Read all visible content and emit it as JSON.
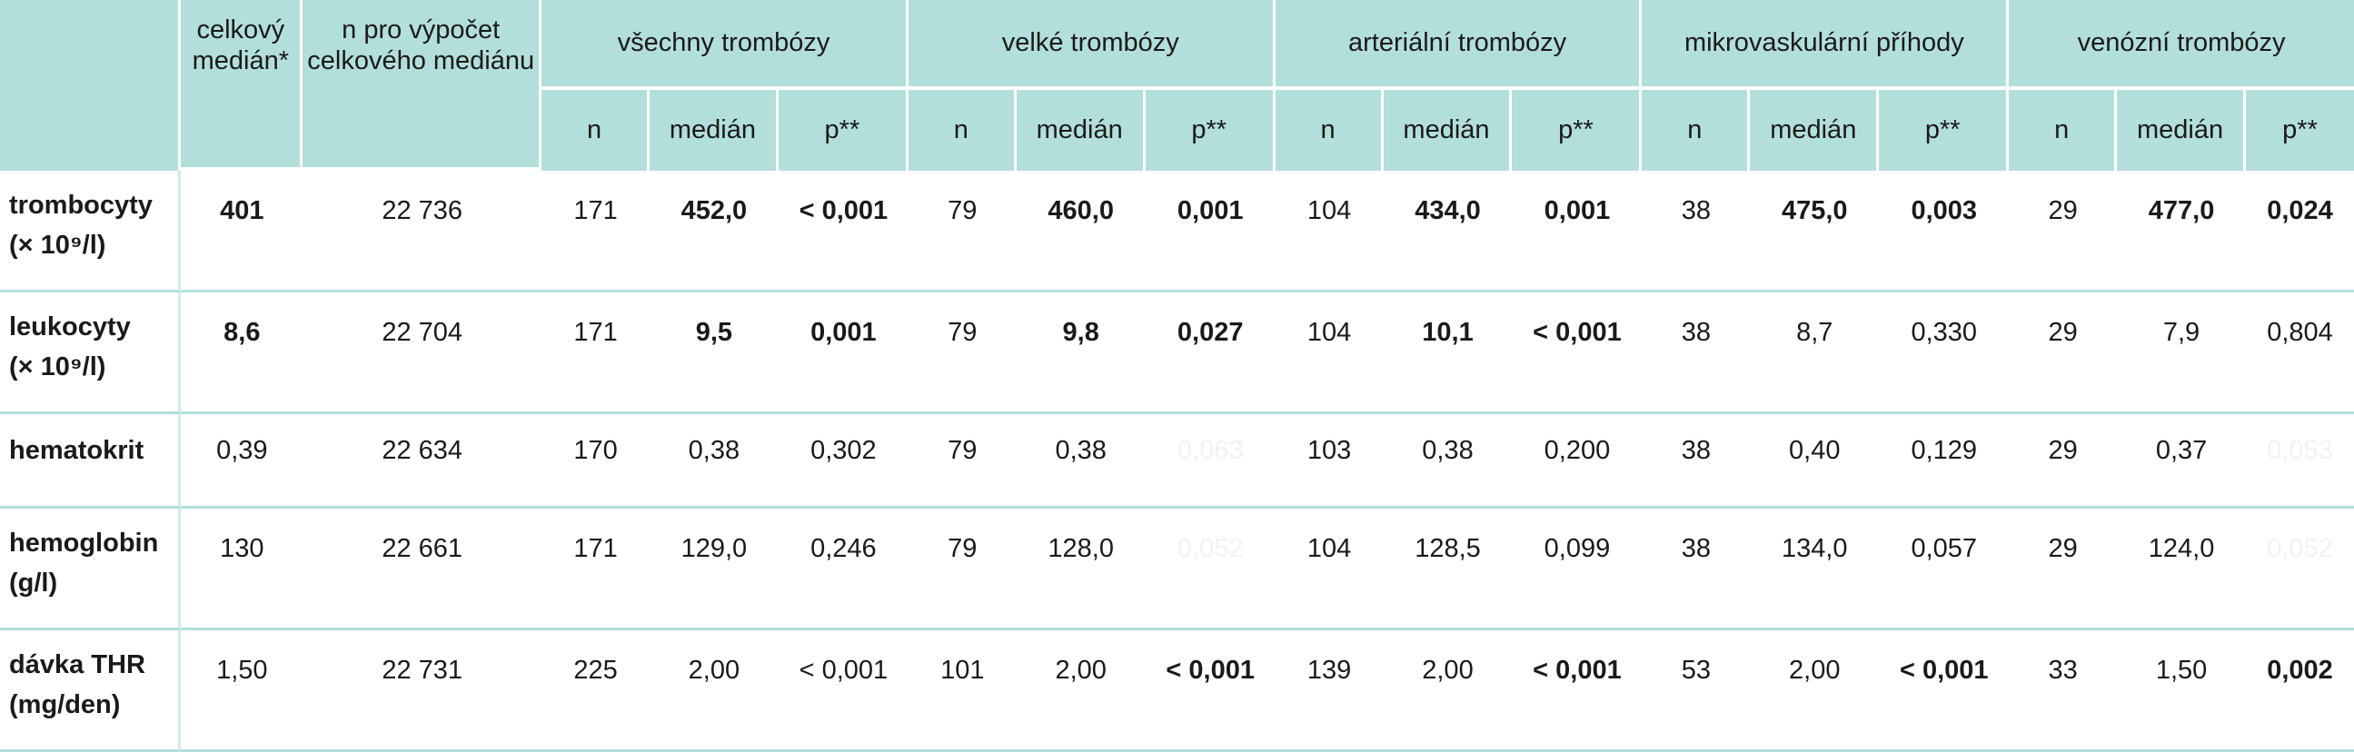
{
  "header": {
    "celkovy_median": "celkový medián*",
    "n_pro_vypocet": "n pro výpočet celkového mediánu",
    "groups": [
      "všechny trombózy",
      "velké trombózy",
      "arteriální trombózy",
      "mikrovaskulární příhody",
      "venózní trombózy"
    ],
    "sub": {
      "n": "n",
      "median": "medián",
      "p": "p**"
    }
  },
  "rows": [
    {
      "label": "trombocyty",
      "unit": "(× 10⁹/l)",
      "celkovy": "401",
      "n_total": "22 736",
      "groups": [
        {
          "n": "171",
          "median": "452,0",
          "p": "< 0,001"
        },
        {
          "n": "79",
          "median": "460,0",
          "p": "0,001"
        },
        {
          "n": "104",
          "median": "434,0",
          "p": "0,001"
        },
        {
          "n": "38",
          "median": "475,0",
          "p": "0,003"
        },
        {
          "n": "29",
          "median": "477,0",
          "p": "0,024"
        }
      ]
    },
    {
      "label": "leukocyty",
      "unit": "(× 10⁹/l)",
      "celkovy": "8,6",
      "n_total": "22 704",
      "groups": [
        {
          "n": "171",
          "median": "9,5",
          "p": "0,001"
        },
        {
          "n": "79",
          "median": "9,8",
          "p": "0,027"
        },
        {
          "n": "104",
          "median": "10,1",
          "p": "< 0,001"
        },
        {
          "n": "38",
          "median": "8,7",
          "p": "0,330"
        },
        {
          "n": "29",
          "median": "7,9",
          "p": "0,804"
        }
      ]
    },
    {
      "label": "hematokrit",
      "unit": "",
      "celkovy": "0,39",
      "n_total": "22 634",
      "groups": [
        {
          "n": "170",
          "median": "0,38",
          "p": "0,302"
        },
        {
          "n": "79",
          "median": "0,38",
          "p": "0,063"
        },
        {
          "n": "103",
          "median": "0,38",
          "p": "0,200"
        },
        {
          "n": "38",
          "median": "0,40",
          "p": "0,129"
        },
        {
          "n": "29",
          "median": "0,37",
          "p": "0,053"
        }
      ]
    },
    {
      "label": "hemoglobin",
      "unit": "(g/l)",
      "celkovy": "130",
      "n_total": "22 661",
      "groups": [
        {
          "n": "171",
          "median": "129,0",
          "p": "0,246"
        },
        {
          "n": "79",
          "median": "128,0",
          "p": "0,052"
        },
        {
          "n": "104",
          "median": "128,5",
          "p": "0,099"
        },
        {
          "n": "38",
          "median": "134,0",
          "p": "0,057"
        },
        {
          "n": "29",
          "median": "124,0",
          "p": "0,052"
        }
      ]
    },
    {
      "label": "dávka THR",
      "unit": "(mg/den)",
      "celkovy": "1,50",
      "n_total": "22 731",
      "groups": [
        {
          "n": "225",
          "median": "2,00",
          "p": "< 0,001"
        },
        {
          "n": "101",
          "median": "2,00",
          "p": "< 0,001"
        },
        {
          "n": "139",
          "median": "2,00",
          "p": "< 0,001"
        },
        {
          "n": "53",
          "median": "2,00",
          "p": "< 0,001"
        },
        {
          "n": "33",
          "median": "1,50",
          "p": "0,002"
        }
      ]
    }
  ]
}
